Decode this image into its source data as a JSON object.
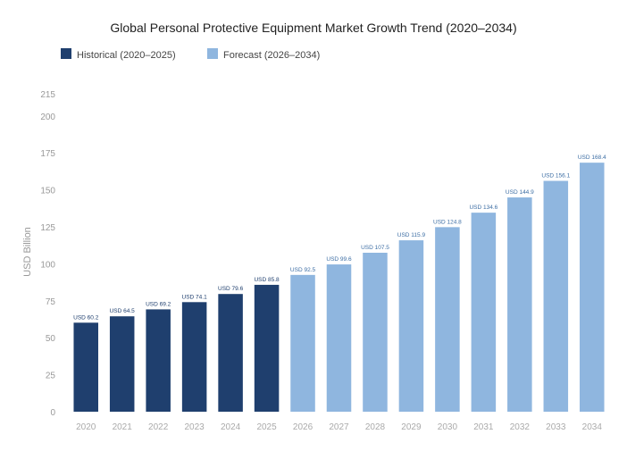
{
  "chart_data": {
    "type": "bar",
    "title": "Global Personal Protective Equipment Market Growth Trend (2020–2034)",
    "xlabel": "",
    "ylabel": "USD Billion",
    "ylim": [
      0,
      215
    ],
    "yticks": [
      0,
      25,
      50,
      75,
      100,
      125,
      150,
      175,
      200,
      215
    ],
    "grid": false,
    "legend_position": "top-left",
    "categories": [
      "2020",
      "2021",
      "2022",
      "2023",
      "2024",
      "2025",
      "2026",
      "2027",
      "2028",
      "2029",
      "2030",
      "2031",
      "2032",
      "2033",
      "2034"
    ],
    "values": [
      60.2,
      64.5,
      69.2,
      74.1,
      79.6,
      85.8,
      92.5,
      99.6,
      107.5,
      115.9,
      124.8,
      134.6,
      144.9,
      156.1,
      168.4
    ],
    "data_labels": [
      "USD 60.2",
      "USD 64.5",
      "USD 69.2",
      "USD 74.1",
      "USD 79.6",
      "USD 85.8",
      "USD 92.5",
      "USD 99.6",
      "USD 107.5",
      "USD 115.9",
      "USD 124.8",
      "USD 134.6",
      "USD 144.9",
      "USD 156.1",
      "USD 168.4"
    ],
    "series": [
      {
        "name": "Historical (2020–2025)",
        "color": "#1f3f6e",
        "categories": [
          "2020",
          "2021",
          "2022",
          "2023",
          "2024",
          "2025"
        ]
      },
      {
        "name": "Forecast (2026–2034)",
        "color": "#8fb6df",
        "categories": [
          "2026",
          "2027",
          "2028",
          "2029",
          "2030",
          "2031",
          "2032",
          "2033",
          "2034"
        ]
      }
    ]
  }
}
